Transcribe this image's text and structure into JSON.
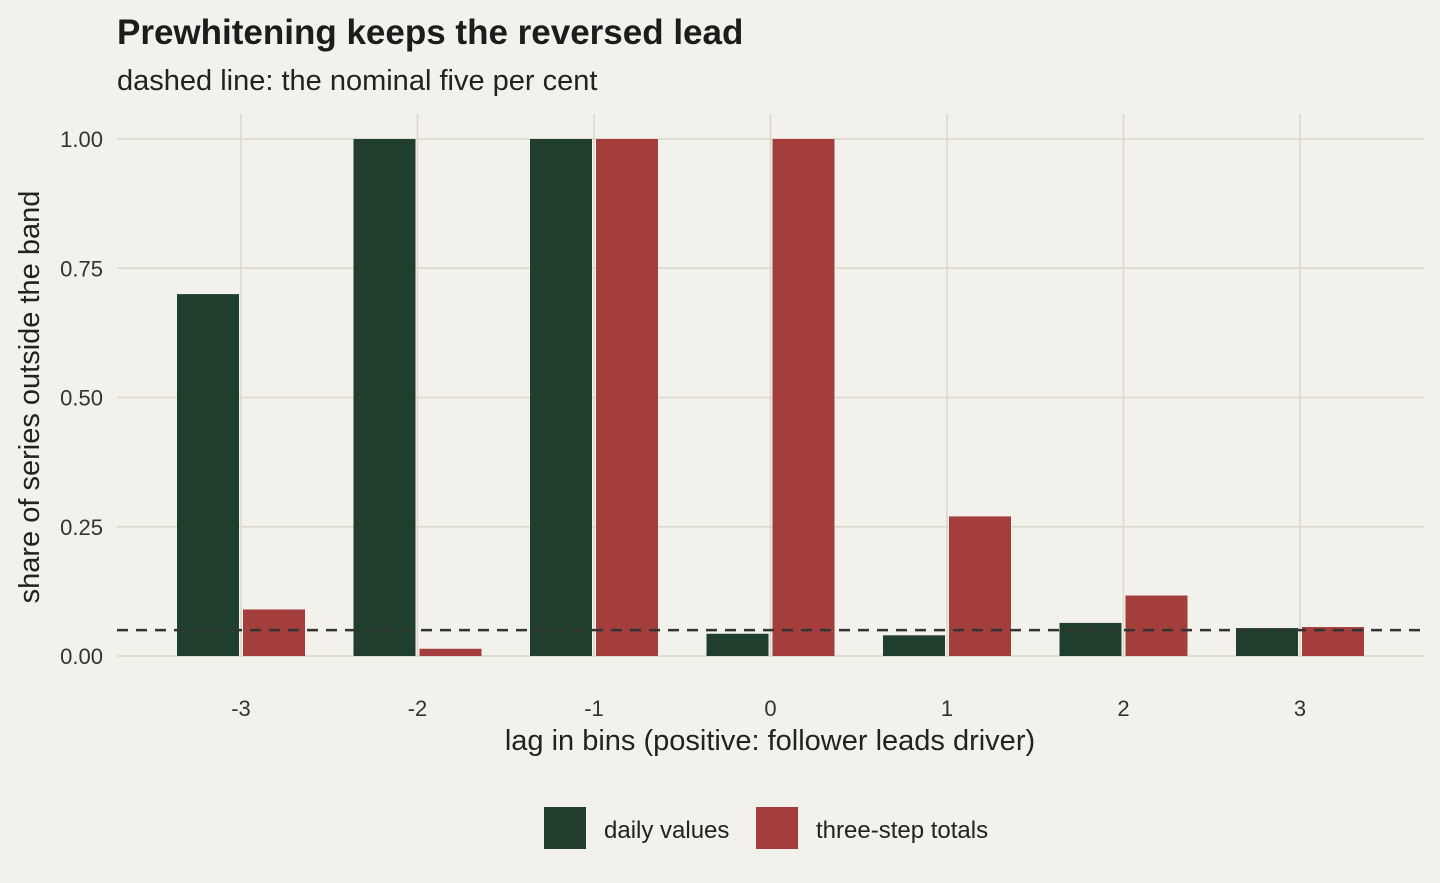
{
  "chart_data": {
    "type": "bar",
    "title": "Prewhitening keeps the reversed lead",
    "subtitle": "dashed line: the nominal five per cent",
    "xlabel": "lag in bins (positive: follower leads driver)",
    "ylabel": "share of series outside the band",
    "categories": [
      "-3",
      "-2",
      "-1",
      "0",
      "1",
      "2",
      "3"
    ],
    "series": [
      {
        "name": "daily values",
        "color": "#1f3f2c",
        "values": [
          0.7,
          1.0,
          1.0,
          0.043,
          0.04,
          0.064,
          0.054
        ]
      },
      {
        "name": "three-step totals",
        "color": "#a33e3d",
        "values": [
          0.09,
          0.014,
          1.0,
          1.0,
          0.27,
          0.117,
          0.056
        ]
      }
    ],
    "reference_line": {
      "y": 0.05,
      "style": "dashed",
      "color": "#333333"
    },
    "ylim": [
      0,
      1.05
    ],
    "yticks": [
      "0.00",
      "0.25",
      "0.50",
      "0.75",
      "1.00"
    ],
    "ytick_values": [
      0,
      0.25,
      0.5,
      0.75,
      1.0
    ],
    "grid": true,
    "legend_position": "bottom"
  }
}
